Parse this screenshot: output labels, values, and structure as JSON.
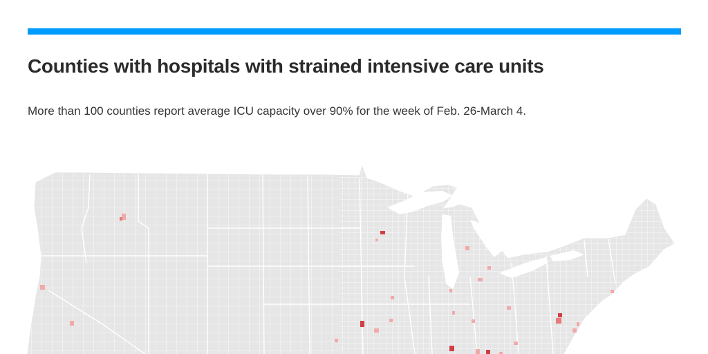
{
  "header": {
    "accent_color": "#009bff",
    "title": "Counties with hospitals with strained intensive care units",
    "subtitle": "More than 100 counties report average ICU capacity over 90% for the week of Feb. 26-March 4."
  },
  "map": {
    "region": "United States counties",
    "land_color": "#e6e6e6",
    "border_color": "#ffffff",
    "highlight_light_color": "#f2a9a9",
    "highlight_mid_color": "#e67a7a",
    "highlight_dark_color": "#cf3f45",
    "highlighted_counties_visible": 28
  }
}
